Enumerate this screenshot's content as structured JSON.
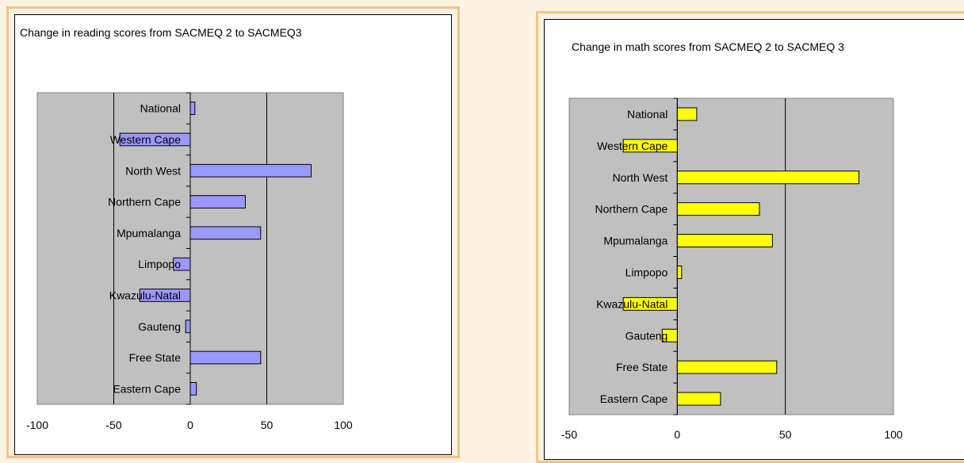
{
  "chart_data": [
    {
      "type": "bar",
      "orientation": "horizontal",
      "title": "Change in reading scores from SACMEQ 2 to SACMEQ3",
      "categories": [
        "National",
        "Western Cape",
        "North West",
        "Northern Cape",
        "Mpumalanga",
        "Limpopo",
        "Kwazulu-Natal",
        "Gauteng",
        "Free State",
        "Eastern Cape"
      ],
      "values": [
        3,
        -46,
        79,
        36,
        46,
        -11,
        -33,
        -3,
        46,
        4
      ],
      "xlim": [
        -100,
        100
      ],
      "xticks": [
        "-100",
        "-50",
        "0",
        "50",
        "100"
      ],
      "grid": true,
      "bar_color": "#9999ff",
      "plot_bg": "#c0c0c0"
    },
    {
      "type": "bar",
      "orientation": "horizontal",
      "title": "Change in math scores from SACMEQ 2 to SACMEQ 3",
      "categories": [
        "National",
        "Western Cape",
        "North West",
        "Northern Cape",
        "Mpumalanga",
        "Limpopo",
        "Kwazulu-Natal",
        "Gauteng",
        "Free State",
        "Eastern Cape"
      ],
      "values": [
        9,
        -25,
        84,
        38,
        44,
        2,
        -25,
        -7,
        46,
        20
      ],
      "xlim": [
        -50,
        100
      ],
      "xticks": [
        "-50",
        "0",
        "50",
        "100"
      ],
      "grid": true,
      "bar_color": "#ffff00",
      "plot_bg": "#c0c0c0"
    }
  ]
}
